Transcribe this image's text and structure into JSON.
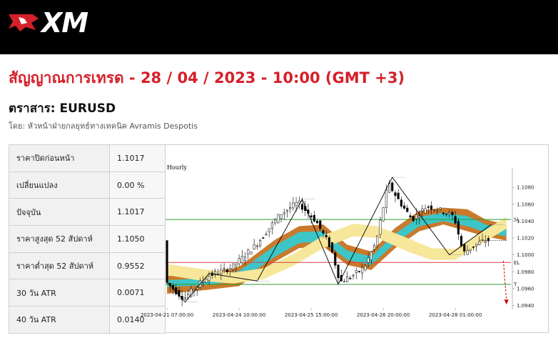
{
  "brand": {
    "logo_text": "XM"
  },
  "headline": "สัญญาณการเทรด - 28 / 04 / 2023 - 10:00 (GMT +3)",
  "instrument": "ตราสาร: EURUSD",
  "author": "โดย: หัวหน้าฝ่ายกลยุทธ์ทางเทคนิค Avramis Despotis",
  "stats": [
    {
      "label": "ราคาปิดก่อนหน้า",
      "value": "1.1017"
    },
    {
      "label": "เปลี่ยนแปลง",
      "value": "0.00 %"
    },
    {
      "label": "ปัจจุบัน",
      "value": "1.1017"
    },
    {
      "label": "ราคาสูงสุด 52 สัปดาห์",
      "value": "1.1050"
    },
    {
      "label": "ราคาต่ำสุด 52 สัปดาห์",
      "value": "0.9552"
    },
    {
      "label": "30 วัน ATR",
      "value": "0.0071"
    },
    {
      "label": "40 วัน ATR",
      "value": "0.0140"
    }
  ],
  "colors": {
    "brand_red": "#d5202a",
    "bull_candle": "#ffffff",
    "bear_candle": "#000000",
    "cloud_outer": "#c97a2c",
    "cloud_inner": "#3cc6c8",
    "band_yellow": "#f7e79a",
    "sl_line": "#2e9a2e",
    "el_line": "#d94040",
    "tp_line": "#2e9a2e",
    "zigzag": "#000000",
    "arrow": "#cc0000"
  },
  "chart_data": {
    "type": "candlestick",
    "timeframe_label": "Hourly",
    "x_tick_labels": [
      "2023-04-21 07:00:00",
      "2023-04-24 10:00:00",
      "2023-04-25 15:00:00",
      "2023-04-26 20:00:00",
      "2023-04-28 01:00:00"
    ],
    "x_tick_index": [
      0,
      24,
      48,
      72,
      96
    ],
    "y_ticks": [
      1.094,
      1.096,
      1.098,
      1.1,
      1.102,
      1.104,
      1.106,
      1.108
    ],
    "y_tick_labels": [
      "1.0940",
      "1.0960",
      "1.0980",
      "1.1000",
      "1.1020",
      "1.1040",
      "1.1060",
      "1.1080"
    ],
    "ylim": [
      1.0937,
      1.1098
    ],
    "n_bars": 115,
    "levels": [
      {
        "name": "SL",
        "value": 1.1042,
        "label": "SL"
      },
      {
        "name": "EL",
        "value": 1.0991,
        "label": "EL"
      },
      {
        "name": "TP",
        "value": 1.0965,
        "label": "T"
      }
    ],
    "last_price": 1.1017,
    "zigzag": [
      {
        "i": 0,
        "price": 1.0968
      },
      {
        "i": 6,
        "price": 1.0944
      },
      {
        "i": 14,
        "price": 1.0978
      },
      {
        "i": 30,
        "price": 1.0969
      },
      {
        "i": 45,
        "price": 1.1066
      },
      {
        "i": 57,
        "price": 1.0965
      },
      {
        "i": 75,
        "price": 1.1092
      },
      {
        "i": 94,
        "price": 1.1
      },
      {
        "i": 108,
        "price": 1.1036
      }
    ],
    "projection": {
      "from": {
        "i": 112,
        "price": 1.0993
      },
      "to": {
        "i": 113,
        "price": 1.0941
      }
    },
    "close_path": [
      {
        "i": 0,
        "price": 1.0968
      },
      {
        "i": 6,
        "price": 1.0948
      },
      {
        "i": 10,
        "price": 1.0962
      },
      {
        "i": 14,
        "price": 1.0975
      },
      {
        "i": 22,
        "price": 1.0985
      },
      {
        "i": 30,
        "price": 1.1012
      },
      {
        "i": 38,
        "price": 1.1048
      },
      {
        "i": 44,
        "price": 1.1062
      },
      {
        "i": 50,
        "price": 1.104
      },
      {
        "i": 55,
        "price": 1.1008
      },
      {
        "i": 58,
        "price": 1.0968
      },
      {
        "i": 62,
        "price": 1.0975
      },
      {
        "i": 66,
        "price": 1.0985
      },
      {
        "i": 70,
        "price": 1.1015
      },
      {
        "i": 74,
        "price": 1.1085
      },
      {
        "i": 78,
        "price": 1.1062
      },
      {
        "i": 82,
        "price": 1.1042
      },
      {
        "i": 87,
        "price": 1.1058
      },
      {
        "i": 92,
        "price": 1.1052
      },
      {
        "i": 96,
        "price": 1.1045
      },
      {
        "i": 99,
        "price": 1.1002
      },
      {
        "i": 103,
        "price": 1.1012
      },
      {
        "i": 106,
        "price": 1.1017
      }
    ],
    "cloud_outer": [
      {
        "i": 0,
        "top": 1.0975,
        "bot": 1.0954
      },
      {
        "i": 12,
        "top": 1.0977,
        "bot": 1.0958
      },
      {
        "i": 24,
        "top": 1.0986,
        "bot": 1.0963
      },
      {
        "i": 36,
        "top": 1.1018,
        "bot": 1.0992
      },
      {
        "i": 44,
        "top": 1.1034,
        "bot": 1.1008
      },
      {
        "i": 52,
        "top": 1.1036,
        "bot": 1.101
      },
      {
        "i": 60,
        "top": 1.1012,
        "bot": 1.0988
      },
      {
        "i": 68,
        "top": 1.1004,
        "bot": 1.0982
      },
      {
        "i": 76,
        "top": 1.1032,
        "bot": 1.1008
      },
      {
        "i": 84,
        "top": 1.1052,
        "bot": 1.1028
      },
      {
        "i": 92,
        "top": 1.1056,
        "bot": 1.1036
      },
      {
        "i": 100,
        "top": 1.1054,
        "bot": 1.1028
      },
      {
        "i": 106,
        "top": 1.1042,
        "bot": 1.1022
      },
      {
        "i": 113,
        "top": 1.1036,
        "bot": 1.1017
      }
    ],
    "cloud_inner": [
      {
        "i": 0,
        "top": 1.097,
        "bot": 1.0962
      },
      {
        "i": 12,
        "top": 1.0972,
        "bot": 1.0964
      },
      {
        "i": 24,
        "top": 1.0981,
        "bot": 1.0969
      },
      {
        "i": 36,
        "top": 1.1011,
        "bot": 1.0998
      },
      {
        "i": 44,
        "top": 1.1027,
        "bot": 1.1014
      },
      {
        "i": 52,
        "top": 1.1028,
        "bot": 1.1016
      },
      {
        "i": 60,
        "top": 1.1005,
        "bot": 1.0994
      },
      {
        "i": 68,
        "top": 1.0998,
        "bot": 1.0988
      },
      {
        "i": 76,
        "top": 1.1025,
        "bot": 1.1014
      },
      {
        "i": 84,
        "top": 1.1045,
        "bot": 1.1034
      },
      {
        "i": 92,
        "top": 1.105,
        "bot": 1.104
      },
      {
        "i": 100,
        "top": 1.1046,
        "bot": 1.1034
      },
      {
        "i": 106,
        "top": 1.1036,
        "bot": 1.1027
      },
      {
        "i": 113,
        "top": 1.1031,
        "bot": 1.1022
      }
    ],
    "yellow_band": [
      {
        "i": 0,
        "top": 1.0989,
        "bot": 1.0976
      },
      {
        "i": 12,
        "top": 1.0983,
        "bot": 1.0969
      },
      {
        "i": 22,
        "top": 1.0979,
        "bot": 1.0966
      },
      {
        "i": 32,
        "top": 1.0984,
        "bot": 1.0971
      },
      {
        "i": 42,
        "top": 1.1001,
        "bot": 1.0987
      },
      {
        "i": 52,
        "top": 1.1023,
        "bot": 1.1008
      },
      {
        "i": 62,
        "top": 1.1037,
        "bot": 1.1022
      },
      {
        "i": 70,
        "top": 1.1034,
        "bot": 1.102
      },
      {
        "i": 80,
        "top": 1.102,
        "bot": 1.1004
      },
      {
        "i": 88,
        "top": 1.1008,
        "bot": 1.0994
      },
      {
        "i": 96,
        "top": 1.1007,
        "bot": 1.0994
      },
      {
        "i": 104,
        "top": 1.1025,
        "bot": 1.1012
      },
      {
        "i": 113,
        "top": 1.1045,
        "bot": 1.1031
      }
    ]
  }
}
